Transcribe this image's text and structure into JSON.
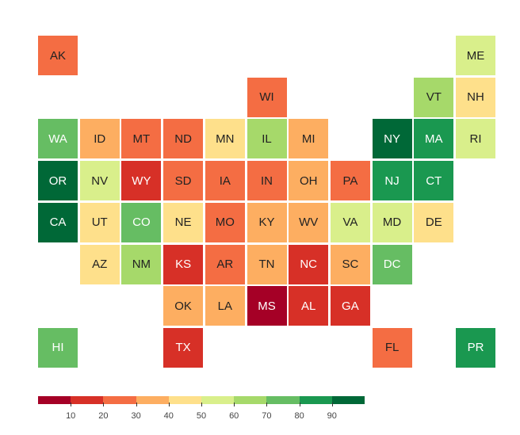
{
  "map_data": {
    "type": "tile-grid-choropleth",
    "color_scale": {
      "thresholds": [
        10,
        20,
        30,
        40,
        50,
        60,
        70,
        80,
        90
      ],
      "colors": [
        "#a50026",
        "#d73027",
        "#f46d43",
        "#fdae61",
        "#fee08b",
        "#d9ef8b",
        "#a6d96a",
        "#66bd63",
        "#1a9850",
        "#006837"
      ],
      "tick_labels": [
        "10",
        "20",
        "30",
        "40",
        "50",
        "60",
        "70",
        "80",
        "90"
      ]
    },
    "tiles": [
      {
        "label": "AK",
        "col": 0,
        "row": 0,
        "bin": 2
      },
      {
        "label": "ME",
        "col": 10,
        "row": 0,
        "bin": 5
      },
      {
        "label": "WI",
        "col": 5,
        "row": 1,
        "bin": 2
      },
      {
        "label": "VT",
        "col": 9,
        "row": 1,
        "bin": 6
      },
      {
        "label": "NH",
        "col": 10,
        "row": 1,
        "bin": 4
      },
      {
        "label": "WA",
        "col": 0,
        "row": 2,
        "bin": 7
      },
      {
        "label": "ID",
        "col": 1,
        "row": 2,
        "bin": 3
      },
      {
        "label": "MT",
        "col": 2,
        "row": 2,
        "bin": 2
      },
      {
        "label": "ND",
        "col": 3,
        "row": 2,
        "bin": 2
      },
      {
        "label": "MN",
        "col": 4,
        "row": 2,
        "bin": 4
      },
      {
        "label": "IL",
        "col": 5,
        "row": 2,
        "bin": 6
      },
      {
        "label": "MI",
        "col": 6,
        "row": 2,
        "bin": 3
      },
      {
        "label": "NY",
        "col": 8,
        "row": 2,
        "bin": 9
      },
      {
        "label": "MA",
        "col": 9,
        "row": 2,
        "bin": 8
      },
      {
        "label": "RI",
        "col": 10,
        "row": 2,
        "bin": 5
      },
      {
        "label": "OR",
        "col": 0,
        "row": 3,
        "bin": 9
      },
      {
        "label": "NV",
        "col": 1,
        "row": 3,
        "bin": 5
      },
      {
        "label": "WY",
        "col": 2,
        "row": 3,
        "bin": 1
      },
      {
        "label": "SD",
        "col": 3,
        "row": 3,
        "bin": 2
      },
      {
        "label": "IA",
        "col": 4,
        "row": 3,
        "bin": 2
      },
      {
        "label": "IN",
        "col": 5,
        "row": 3,
        "bin": 2
      },
      {
        "label": "OH",
        "col": 6,
        "row": 3,
        "bin": 3
      },
      {
        "label": "PA",
        "col": 7,
        "row": 3,
        "bin": 2
      },
      {
        "label": "NJ",
        "col": 8,
        "row": 3,
        "bin": 8
      },
      {
        "label": "CT",
        "col": 9,
        "row": 3,
        "bin": 8
      },
      {
        "label": "CA",
        "col": 0,
        "row": 4,
        "bin": 9
      },
      {
        "label": "UT",
        "col": 1,
        "row": 4,
        "bin": 4
      },
      {
        "label": "CO",
        "col": 2,
        "row": 4,
        "bin": 7
      },
      {
        "label": "NE",
        "col": 3,
        "row": 4,
        "bin": 4
      },
      {
        "label": "MO",
        "col": 4,
        "row": 4,
        "bin": 2
      },
      {
        "label": "KY",
        "col": 5,
        "row": 4,
        "bin": 3
      },
      {
        "label": "WV",
        "col": 6,
        "row": 4,
        "bin": 3
      },
      {
        "label": "VA",
        "col": 7,
        "row": 4,
        "bin": 5
      },
      {
        "label": "MD",
        "col": 8,
        "row": 4,
        "bin": 5
      },
      {
        "label": "DE",
        "col": 9,
        "row": 4,
        "bin": 4
      },
      {
        "label": "AZ",
        "col": 1,
        "row": 5,
        "bin": 4
      },
      {
        "label": "NM",
        "col": 2,
        "row": 5,
        "bin": 6
      },
      {
        "label": "KS",
        "col": 3,
        "row": 5,
        "bin": 1
      },
      {
        "label": "AR",
        "col": 4,
        "row": 5,
        "bin": 2
      },
      {
        "label": "TN",
        "col": 5,
        "row": 5,
        "bin": 3
      },
      {
        "label": "NC",
        "col": 6,
        "row": 5,
        "bin": 1
      },
      {
        "label": "SC",
        "col": 7,
        "row": 5,
        "bin": 3
      },
      {
        "label": "DC",
        "col": 8,
        "row": 5,
        "bin": 7
      },
      {
        "label": "OK",
        "col": 3,
        "row": 6,
        "bin": 3
      },
      {
        "label": "LA",
        "col": 4,
        "row": 6,
        "bin": 3
      },
      {
        "label": "MS",
        "col": 5,
        "row": 6,
        "bin": 0
      },
      {
        "label": "AL",
        "col": 6,
        "row": 6,
        "bin": 1
      },
      {
        "label": "GA",
        "col": 7,
        "row": 6,
        "bin": 1
      },
      {
        "label": "HI",
        "col": 0,
        "row": 7,
        "bin": 7
      },
      {
        "label": "TX",
        "col": 3,
        "row": 7,
        "bin": 1
      },
      {
        "label": "FL",
        "col": 8,
        "row": 7,
        "bin": 2
      },
      {
        "label": "PR",
        "col": 10,
        "row": 7,
        "bin": 8
      }
    ]
  }
}
